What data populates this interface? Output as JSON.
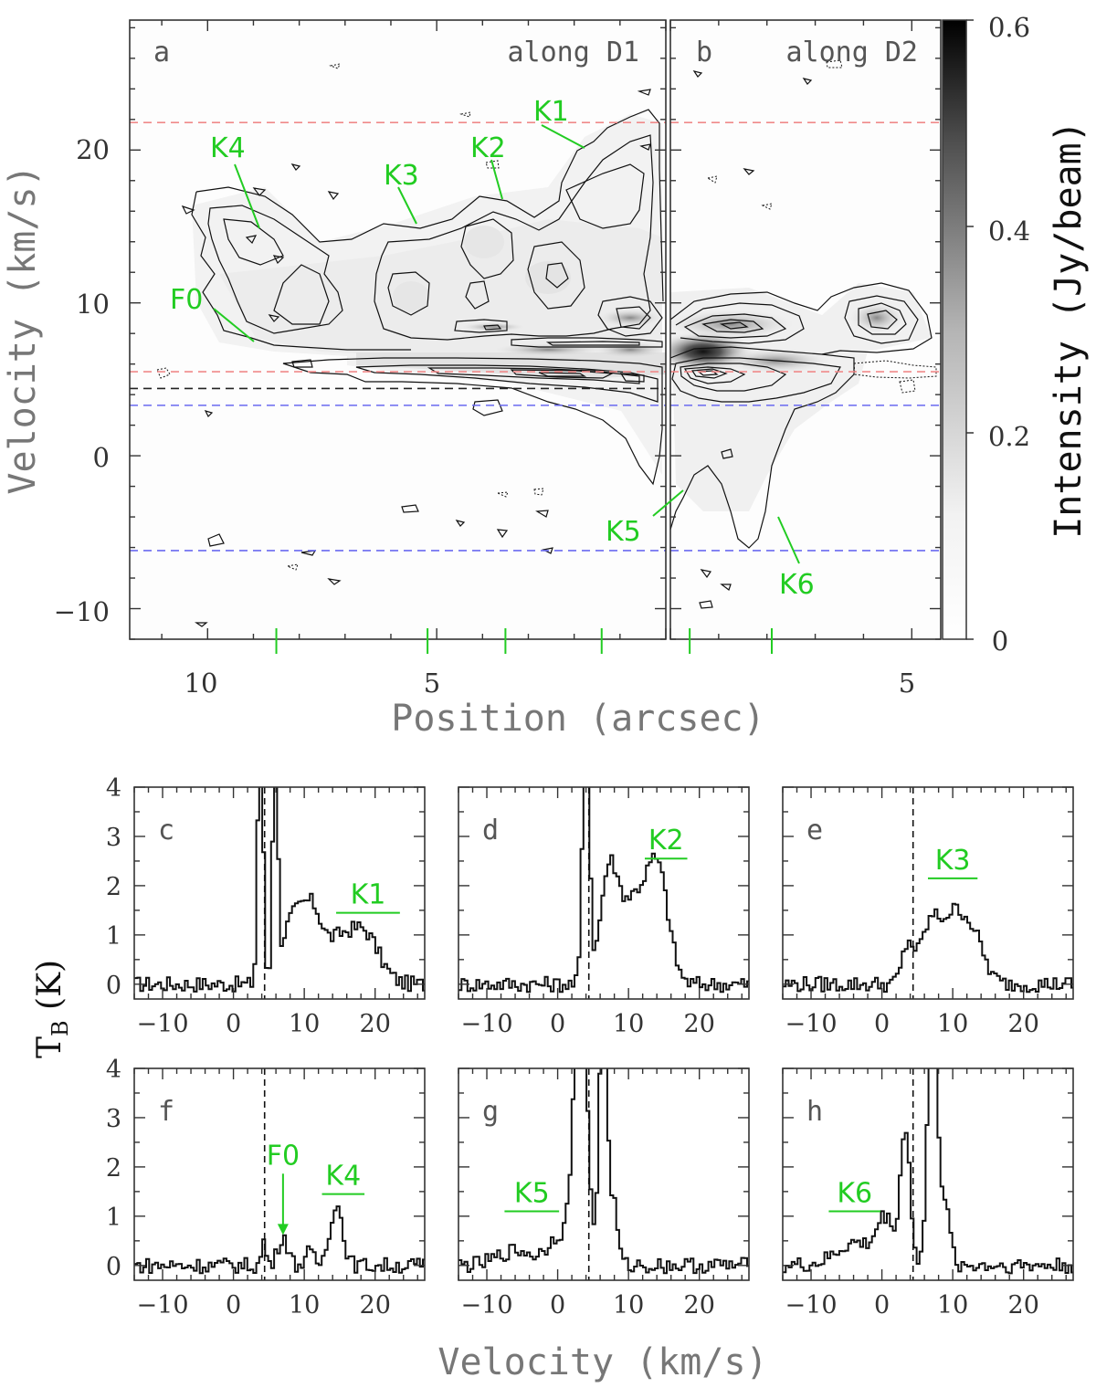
{
  "chart_data": [
    {
      "type": "heatmap",
      "subtype": "position-velocity diagram",
      "xlabel": "Position (arcsec)",
      "ylabel": "Velocity (km/s)",
      "y_ticks": [
        "20",
        "10",
        "0",
        "−10"
      ],
      "ylim": [
        -12,
        28.5
      ],
      "colorbar": {
        "label": "Intensity (Jy/beam)",
        "ticks": [
          "0.6",
          "0.4",
          "0.2",
          "0"
        ],
        "range": [
          0,
          0.6
        ]
      },
      "panels": [
        {
          "id": "a",
          "label": "a",
          "title": "along D1",
          "xlim": [
            11.7,
            0
          ],
          "x_ticks": [
            "10",
            "5"
          ],
          "x_tick_values": [
            10,
            5
          ]
        },
        {
          "id": "b",
          "label": "b",
          "title": "along D2",
          "xlim": [
            0,
            5.6
          ],
          "x_ticks": [
            "5"
          ],
          "x_tick_values": [
            5
          ]
        }
      ],
      "reference_lines": [
        {
          "velocity": 21.8,
          "color": "#f08a8a",
          "style": "dashed",
          "span": "both"
        },
        {
          "velocity": 5.5,
          "color": "#f08a8a",
          "style": "dashed",
          "span": "both"
        },
        {
          "velocity": 4.4,
          "color": "#222222",
          "style": "dashed",
          "span": "a"
        },
        {
          "velocity": 3.3,
          "color": "#6a6af0",
          "style": "dashed",
          "span": "both"
        },
        {
          "velocity": -6.2,
          "color": "#6a6af0",
          "style": "dashed",
          "span": "both"
        }
      ],
      "emission_features": [
        {
          "name": "K1",
          "panel": "a",
          "velocity": 20
        },
        {
          "name": "K2",
          "panel": "a",
          "velocity": 17
        },
        {
          "name": "K3",
          "panel": "a",
          "velocity": 15
        },
        {
          "name": "K4",
          "panel": "a",
          "velocity": 15
        },
        {
          "name": "F0",
          "panel": "a",
          "velocity": 7
        },
        {
          "name": "K5",
          "panel": "b",
          "velocity": -2
        },
        {
          "name": "K6",
          "panel": "b",
          "velocity": -4
        }
      ],
      "slice_markers_a": [
        8.5,
        5.2,
        3.5,
        1.4
      ],
      "slice_markers_b": [
        0.4,
        2.1
      ]
    },
    {
      "type": "line",
      "subtype": "spectra grid",
      "xlabel": "Velocity (km/s)",
      "ylabel": "T",
      "ylabel_sub": "B",
      "ylabel_unit": " (K)",
      "xlim": [
        -14,
        27
      ],
      "ylim": [
        -0.3,
        4
      ],
      "x_ticks": [
        "−10",
        "0",
        "10",
        "20"
      ],
      "x_tick_values": [
        -10,
        0,
        10,
        20
      ],
      "y_ticks": [
        "0",
        "1",
        "2",
        "3",
        "4"
      ],
      "y_tick_values": [
        0,
        1,
        2,
        3,
        4
      ],
      "systemic_velocity": 4.4,
      "panels": [
        {
          "id": "c",
          "label": "c",
          "features": [
            {
              "name": "K1",
              "bar": [
                14.5,
                23.5
              ],
              "level": 1.45
            }
          ],
          "peaks": [
            {
              "v": 3.6,
              "a": 6,
              "w": 0.35
            },
            {
              "v": 5.7,
              "a": 6,
              "w": 0.3
            },
            {
              "v": 8,
              "a": 1.2,
              "w": 1.6
            },
            {
              "v": 11,
              "a": 1.4,
              "w": 1.5
            },
            {
              "v": 14.5,
              "a": 0.6,
              "w": 1.5
            },
            {
              "v": 18,
              "a": 1.1,
              "w": 2.2
            }
          ]
        },
        {
          "id": "d",
          "label": "d",
          "features": [
            {
              "name": "K2",
              "bar": [
                12.3,
                18.3
              ],
              "level": 2.55
            }
          ],
          "peaks": [
            {
              "v": 3.8,
              "a": 6,
              "w": 0.45
            },
            {
              "v": 7,
              "a": 2.0,
              "w": 1.2
            },
            {
              "v": 10.5,
              "a": 1.7,
              "w": 2.2
            },
            {
              "v": 14,
              "a": 2.0,
              "w": 1.5
            }
          ]
        },
        {
          "id": "e",
          "label": "e",
          "features": [
            {
              "name": "K3",
              "bar": [
                6.5,
                13.5
              ],
              "level": 2.15
            }
          ],
          "peaks": [
            {
              "v": 3.5,
              "a": 0.8,
              "w": 0.8
            },
            {
              "v": 6.5,
              "a": 1.0,
              "w": 1.3
            },
            {
              "v": 10,
              "a": 1.4,
              "w": 2.0
            },
            {
              "v": 13,
              "a": 0.6,
              "w": 1.5
            }
          ]
        },
        {
          "id": "f",
          "label": "f",
          "features": [
            {
              "name": "F0",
              "arrow_v": 7,
              "level": 1.9
            },
            {
              "name": "K4",
              "bar": [
                12.5,
                18.5
              ],
              "level": 1.45
            }
          ],
          "peaks": [
            {
              "v": 4.1,
              "a": 0.5,
              "w": 0.3
            },
            {
              "v": 6.8,
              "a": 0.6,
              "w": 0.7
            },
            {
              "v": 10.5,
              "a": 0.25,
              "w": 0.6
            },
            {
              "v": 14.3,
              "a": 1.25,
              "w": 0.9
            }
          ]
        },
        {
          "id": "g",
          "label": "g",
          "features": [
            {
              "name": "K5",
              "bar": [
                -7.5,
                0.2
              ],
              "level": 1.1
            }
          ],
          "peaks": [
            {
              "v": -6,
              "a": 0.3,
              "w": 2.5
            },
            {
              "v": 0,
              "a": 0.6,
              "w": 1.5
            },
            {
              "v": 3.0,
              "a": 6,
              "w": 0.9
            },
            {
              "v": 6.2,
              "a": 6,
              "w": 0.5
            },
            {
              "v": 7.6,
              "a": 1.3,
              "w": 0.6
            }
          ]
        },
        {
          "id": "h",
          "label": "h",
          "features": [
            {
              "name": "K6",
              "bar": [
                -7.5,
                -0.2
              ],
              "level": 1.1
            }
          ],
          "peaks": [
            {
              "v": -4,
              "a": 0.45,
              "w": 2.5
            },
            {
              "v": 0.3,
              "a": 0.9,
              "w": 1.2
            },
            {
              "v": 3.1,
              "a": 2.7,
              "w": 0.7
            },
            {
              "v": 6.9,
              "a": 6,
              "w": 0.6
            },
            {
              "v": 8.5,
              "a": 1.3,
              "w": 0.8
            }
          ]
        }
      ]
    }
  ]
}
